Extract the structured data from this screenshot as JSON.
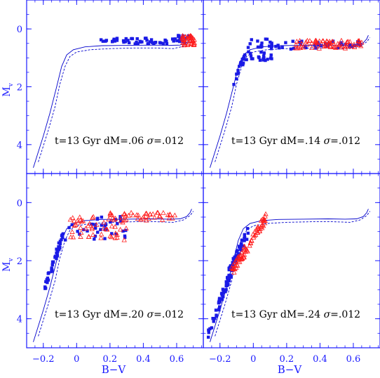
{
  "figure": {
    "xlabel": "B−V",
    "ylabel_main": "M",
    "ylabel_sub": "v",
    "colors": {
      "axis": "#1a1aff",
      "iso_solid": "#0000cc",
      "iso_dashed": "#0000cc",
      "squares": "#1a1ae6",
      "triangles": "#ff1a1a"
    }
  },
  "chart_data": [
    {
      "type": "scatter",
      "panel": "top-left",
      "annotation": {
        "prefix": "t=13 Gyr dM=.06 ",
        "sigma": "σ",
        "suffix": "=.012"
      },
      "xlim": [
        -0.3,
        0.76
      ],
      "ylim": [
        -1,
        5
      ],
      "xticks": [
        "−0.2",
        "0",
        "0.2",
        "0.4",
        "0.6"
      ],
      "yticks": [
        "0",
        "2",
        "4"
      ],
      "show_xtick_labels": false,
      "show_ytick_labels": true,
      "series": [
        {
          "marker": "square",
          "clusters": [
            {
              "xs": [
                0.14,
                0.6
              ],
              "ys": [
                0.32,
                0.52
              ],
              "n": 48
            },
            {
              "xs": [
                0.6,
                0.69
              ],
              "ys": [
                0.22,
                0.5
              ],
              "n": 14
            }
          ]
        },
        {
          "marker": "triangle",
          "clusters": [
            {
              "xs": [
                0.63,
                0.71
              ],
              "ys": [
                0.22,
                0.58
              ],
              "n": 38
            }
          ]
        }
      ]
    },
    {
      "type": "scatter",
      "panel": "top-right",
      "annotation": {
        "prefix": "t=13 Gyr dM=.14 ",
        "sigma": "σ",
        "suffix": "=.012"
      },
      "xlim": [
        -0.3,
        0.76
      ],
      "ylim": [
        -1,
        5
      ],
      "xticks": [
        "−0.2",
        "0",
        "0.2",
        "0.4",
        "0.6"
      ],
      "yticks": [
        "0",
        "2",
        "4"
      ],
      "show_xtick_labels": false,
      "show_ytick_labels": false,
      "series": [
        {
          "marker": "square",
          "clusters": [
            {
              "xs": [
                -0.05,
                0.12
              ],
              "ys": [
                0.35,
                1.1
              ],
              "n": 36
            },
            {
              "xs": [
                -0.13,
                -0.04
              ],
              "ys": [
                0.9,
                1.9
              ],
              "n": 16
            },
            {
              "xs": [
                0.1,
                0.66
              ],
              "ys": [
                0.42,
                0.7
              ],
              "n": 42
            }
          ]
        },
        {
          "marker": "triangle",
          "clusters": [
            {
              "xs": [
                0.25,
                0.66
              ],
              "ys": [
                0.4,
                0.68
              ],
              "n": 70
            }
          ]
        }
      ]
    },
    {
      "type": "scatter",
      "panel": "bottom-left",
      "annotation": {
        "prefix": "t=13 Gyr dM=.20 ",
        "sigma": "σ",
        "suffix": "=.012"
      },
      "xlim": [
        -0.3,
        0.76
      ],
      "ylim": [
        -1,
        5
      ],
      "xticks": [
        "−0.2",
        "0",
        "0.2",
        "0.4",
        "0.6"
      ],
      "yticks": [
        "0",
        "2",
        "4"
      ],
      "show_xtick_labels": true,
      "show_ytick_labels": true,
      "series": [
        {
          "marker": "square",
          "clusters": [
            {
              "xs": [
                -0.19,
                -0.08
              ],
              "ys": [
                1.1,
                2.9
              ],
              "n": 44
            },
            {
              "xs": [
                -0.1,
                0.3
              ],
              "ys": [
                0.45,
                1.3
              ],
              "n": 36
            }
          ]
        },
        {
          "marker": "triangle",
          "clusters": [
            {
              "xs": [
                -0.05,
                0.3
              ],
              "ys": [
                0.45,
                1.3
              ],
              "n": 52
            },
            {
              "xs": [
                0.2,
                0.6
              ],
              "ys": [
                0.35,
                0.62
              ],
              "n": 40
            }
          ]
        }
      ]
    },
    {
      "type": "scatter",
      "panel": "bottom-right",
      "annotation": {
        "prefix": "t=13 Gyr dM=.24 ",
        "sigma": "σ",
        "suffix": "=.012"
      },
      "xlim": [
        -0.3,
        0.76
      ],
      "ylim": [
        -1,
        5
      ],
      "xticks": [
        "−0.2",
        "0",
        "0.2",
        "0.4",
        "0.6"
      ],
      "yticks": [
        "0",
        "2",
        "4"
      ],
      "show_xtick_labels": true,
      "show_ytick_labels": false,
      "series": [
        {
          "marker": "square",
          "clusters": [
            {
              "xs": [
                -0.27,
                -0.12
              ],
              "ys": [
                2.2,
                4.5
              ],
              "n": 62
            },
            {
              "xs": [
                -0.15,
                -0.03
              ],
              "ys": [
                1.0,
                2.4
              ],
              "n": 40
            }
          ]
        },
        {
          "marker": "triangle",
          "clusters": [
            {
              "xs": [
                -0.13,
                0.08
              ],
              "ys": [
                0.45,
                2.4
              ],
              "n": 78
            }
          ]
        }
      ]
    }
  ]
}
